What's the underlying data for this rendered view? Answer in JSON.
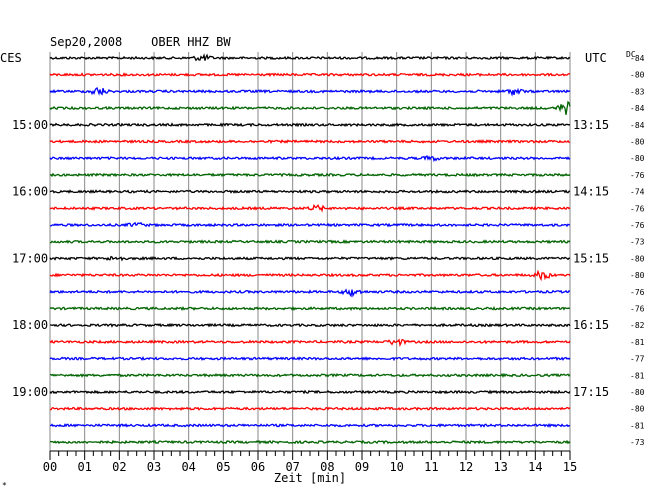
{
  "chart_data": {
    "type": "line",
    "title": "Sep20,2008    OBER HHZ BW",
    "xlabel": "Zeit [min]",
    "ylabel": "",
    "left_label": "CES",
    "right_label": "UTC",
    "dc_label": "DC",
    "x_range": [
      0,
      15
    ],
    "x_ticks": [
      "00",
      "01",
      "02",
      "03",
      "04",
      "05",
      "06",
      "07",
      "08",
      "09",
      "10",
      "11",
      "12",
      "13",
      "14",
      "15"
    ],
    "grid": true,
    "trace_colors": [
      "#000000",
      "#ff0000",
      "#0000ff",
      "#006400"
    ],
    "left_time_labels": [
      {
        "row": 4,
        "label": "15:00"
      },
      {
        "row": 8,
        "label": "16:00"
      },
      {
        "row": 12,
        "label": "17:00"
      },
      {
        "row": 16,
        "label": "18:00"
      },
      {
        "row": 20,
        "label": "19:00"
      }
    ],
    "right_time_labels": [
      {
        "row": 4,
        "label": "13:15"
      },
      {
        "row": 8,
        "label": "14:15"
      },
      {
        "row": 12,
        "label": "15:15"
      },
      {
        "row": 16,
        "label": "16:15"
      },
      {
        "row": 20,
        "label": "17:15"
      }
    ],
    "dc_values": [
      -84,
      -80,
      -83,
      -84,
      -84,
      -80,
      -80,
      -76,
      -74,
      -76,
      -76,
      -73,
      -80,
      -80,
      -76,
      -76,
      -82,
      -81,
      -77,
      -81,
      -80,
      -80,
      -81,
      -73
    ],
    "row_count": 24,
    "events": [
      {
        "row": 0,
        "x_min": 4.4,
        "amp": 3
      },
      {
        "row": 2,
        "x_min": 1.4,
        "amp": 4
      },
      {
        "row": 2,
        "x_min": 13.4,
        "amp": 3
      },
      {
        "row": 3,
        "x_min": 14.9,
        "amp": 6
      },
      {
        "row": 9,
        "x_min": 7.7,
        "amp": 2.5
      },
      {
        "row": 12,
        "x_min": 1.9,
        "amp": 2
      },
      {
        "row": 13,
        "x_min": 14.2,
        "amp": 4
      },
      {
        "row": 14,
        "x_min": 8.7,
        "amp": 3.5
      },
      {
        "row": 17,
        "x_min": 10.0,
        "amp": 3
      },
      {
        "row": 10,
        "x_min": 2.5,
        "amp": 2
      },
      {
        "row": 6,
        "x_min": 11.0,
        "amp": 2
      }
    ]
  },
  "footer_mark": "*"
}
